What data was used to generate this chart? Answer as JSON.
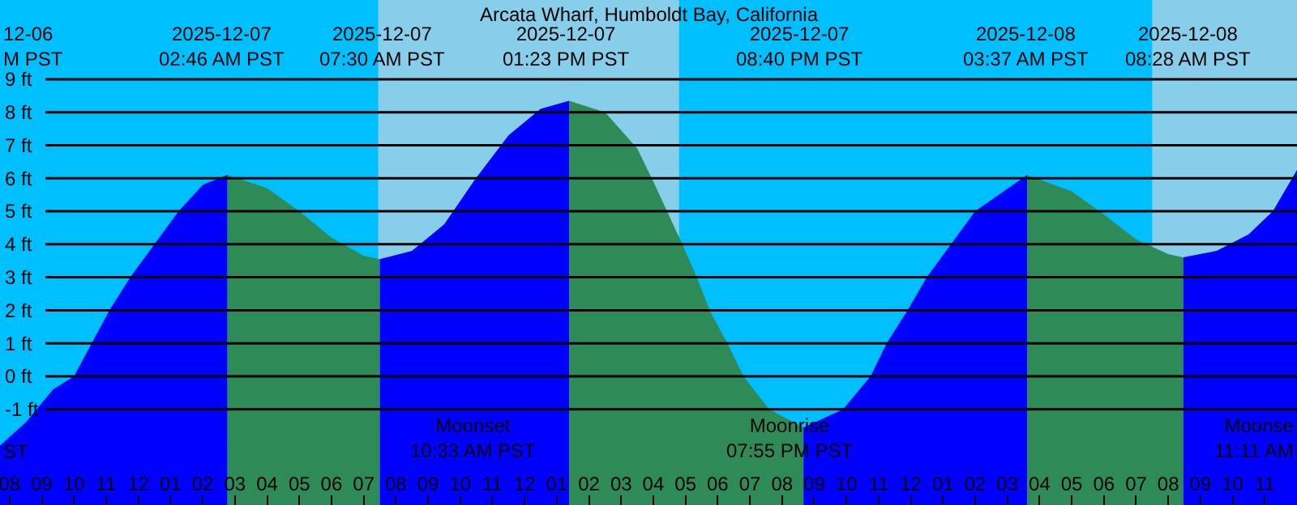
{
  "chart_data": {
    "type": "area",
    "title": "Arcata Wharf, Humboldt Bay, California",
    "xlim": [
      "2025-12-06T19:42",
      "2025-12-08T12:00"
    ],
    "xticks": [
      {
        "value": "2025-12-06T20:00",
        "label": "08"
      },
      {
        "value": "2025-12-06T21:00",
        "label": "09"
      },
      {
        "value": "2025-12-06T22:00",
        "label": "10"
      },
      {
        "value": "2025-12-06T23:00",
        "label": "11"
      },
      {
        "value": "2025-12-07T00:00",
        "label": "12"
      },
      {
        "value": "2025-12-07T01:00",
        "label": "01"
      },
      {
        "value": "2025-12-07T02:00",
        "label": "02"
      },
      {
        "value": "2025-12-07T03:00",
        "label": "03"
      },
      {
        "value": "2025-12-07T04:00",
        "label": "04"
      },
      {
        "value": "2025-12-07T05:00",
        "label": "05"
      },
      {
        "value": "2025-12-07T06:00",
        "label": "06"
      },
      {
        "value": "2025-12-07T07:00",
        "label": "07"
      },
      {
        "value": "2025-12-07T08:00",
        "label": "08"
      },
      {
        "value": "2025-12-07T09:00",
        "label": "09"
      },
      {
        "value": "2025-12-07T10:00",
        "label": "10"
      },
      {
        "value": "2025-12-07T11:00",
        "label": "11"
      },
      {
        "value": "2025-12-07T12:00",
        "label": "12"
      },
      {
        "value": "2025-12-07T13:00",
        "label": "01"
      },
      {
        "value": "2025-12-07T14:00",
        "label": "02"
      },
      {
        "value": "2025-12-07T15:00",
        "label": "03"
      },
      {
        "value": "2025-12-07T16:00",
        "label": "04"
      },
      {
        "value": "2025-12-07T17:00",
        "label": "05"
      },
      {
        "value": "2025-12-07T18:00",
        "label": "06"
      },
      {
        "value": "2025-12-07T19:00",
        "label": "07"
      },
      {
        "value": "2025-12-07T20:00",
        "label": "08"
      },
      {
        "value": "2025-12-07T21:00",
        "label": "09"
      },
      {
        "value": "2025-12-07T22:00",
        "label": "10"
      },
      {
        "value": "2025-12-07T23:00",
        "label": "11"
      },
      {
        "value": "2025-12-08T00:00",
        "label": "12"
      },
      {
        "value": "2025-12-08T01:00",
        "label": "01"
      },
      {
        "value": "2025-12-08T02:00",
        "label": "02"
      },
      {
        "value": "2025-12-08T03:00",
        "label": "03"
      },
      {
        "value": "2025-12-08T04:00",
        "label": "04"
      },
      {
        "value": "2025-12-08T05:00",
        "label": "05"
      },
      {
        "value": "2025-12-08T06:00",
        "label": "06"
      },
      {
        "value": "2025-12-08T07:00",
        "label": "07"
      },
      {
        "value": "2025-12-08T08:00",
        "label": "08"
      },
      {
        "value": "2025-12-08T09:00",
        "label": "09"
      },
      {
        "value": "2025-12-08T10:00",
        "label": "10"
      },
      {
        "value": "2025-12-08T11:00",
        "label": "11"
      }
    ],
    "ylim": [
      -3.9,
      11.4
    ],
    "yticks": [
      {
        "value": -1,
        "label": "-1 ft"
      },
      {
        "value": 0,
        "label": "0 ft"
      },
      {
        "value": 1,
        "label": "1 ft"
      },
      {
        "value": 2,
        "label": "2 ft"
      },
      {
        "value": 3,
        "label": "3 ft"
      },
      {
        "value": 4,
        "label": "4 ft"
      },
      {
        "value": 5,
        "label": "5 ft"
      },
      {
        "value": 6,
        "label": "6 ft"
      },
      {
        "value": 7,
        "label": "7 ft"
      },
      {
        "value": 8,
        "label": "8 ft"
      },
      {
        "value": 9,
        "label": "9 ft"
      }
    ],
    "grid": "y",
    "series": [
      {
        "color": "#0000ff",
        "x": [
          "2025-12-06T19:42",
          "2025-12-06T20:30",
          "2025-12-06T21:21",
          "2025-12-06T22:00",
          "2025-12-06T22:33",
          "2025-12-06T23:06",
          "2025-12-06T23:45",
          "2025-12-07T00:30",
          "2025-12-07T01:15",
          "2025-12-07T02:00",
          "2025-12-07T02:46"
        ],
        "values": [
          -2.1,
          -1.4,
          -0.4,
          0,
          1,
          2,
          3,
          4,
          5,
          5.8,
          6.1
        ]
      },
      {
        "color": "#2e8b57",
        "x": [
          "2025-12-07T02:46",
          "2025-12-07T04:00",
          "2025-12-07T05:00",
          "2025-12-07T06:00",
          "2025-12-07T07:00",
          "2025-12-07T07:30"
        ],
        "values": [
          6.1,
          5.7,
          5,
          4.2,
          3.65,
          3.55
        ]
      },
      {
        "color": "#0000ff",
        "x": [
          "2025-12-07T07:30",
          "2025-12-07T08:30",
          "2025-12-07T09:30",
          "2025-12-07T10:27",
          "2025-12-07T11:30",
          "2025-12-07T12:30",
          "2025-12-07T13:23"
        ],
        "values": [
          3.55,
          3.8,
          4.6,
          5.95,
          7.3,
          8.1,
          8.35
        ]
      },
      {
        "color": "#2e8b57",
        "x": [
          "2025-12-07T13:23",
          "2025-12-07T14:30",
          "2025-12-07T15:30",
          "2025-12-07T16:00",
          "2025-12-07T16:54",
          "2025-12-07T17:21",
          "2025-12-07T17:45",
          "2025-12-07T18:18",
          "2025-12-07T18:48",
          "2025-12-07T19:36",
          "2025-12-07T20:40"
        ],
        "values": [
          8.35,
          8,
          6.9,
          5.9,
          4,
          3,
          2,
          1,
          0,
          -1,
          -1.55
        ]
      },
      {
        "color": "#0000ff",
        "x": [
          "2025-12-07T20:40",
          "2025-12-07T21:54",
          "2025-12-07T22:45",
          "2025-12-07T23:15",
          "2025-12-07T23:54",
          "2025-12-08T00:30",
          "2025-12-08T01:15",
          "2025-12-08T02:00",
          "2025-12-08T03:37"
        ],
        "values": [
          -1.55,
          -1,
          0,
          1,
          2,
          3,
          4,
          5,
          6.1
        ]
      },
      {
        "color": "#2e8b57",
        "x": [
          "2025-12-08T03:37",
          "2025-12-08T05:00",
          "2025-12-08T06:00",
          "2025-12-08T07:00",
          "2025-12-08T08:00",
          "2025-12-08T08:28"
        ],
        "values": [
          6.1,
          5.6,
          4.9,
          4.15,
          3.7,
          3.6
        ]
      },
      {
        "color": "#0000ff",
        "x": [
          "2025-12-08T08:28",
          "2025-12-08T09:30",
          "2025-12-08T10:30",
          "2025-12-08T11:15",
          "2025-12-08T12:00"
        ],
        "values": [
          3.6,
          3.8,
          4.3,
          5,
          6.25
        ]
      }
    ],
    "bands": [
      {
        "axis": "x",
        "from": "2025-12-07T07:27",
        "to": "2025-12-07T16:48",
        "color": "#87ceeb"
      },
      {
        "axis": "x",
        "from": "2025-12-08T07:30",
        "to": "2025-12-08T12:00",
        "color": "#87ceeb"
      }
    ],
    "annotations": [
      "12-06\nM PST",
      "2025-12-07\n02:46 AM PST",
      "2025-12-07\n07:30 AM PST",
      "2025-12-07\n01:23 PM PST",
      "2025-12-07\n08:40 PM PST",
      "2025-12-08\n03:37 AM PST",
      "2025-12-08\n08:28 AM PST",
      "ST",
      "Moonset\n10:33 AM PST",
      "Moonrise\n07:55 PM PST",
      "Moonse\n11:11 AM"
    ]
  }
}
